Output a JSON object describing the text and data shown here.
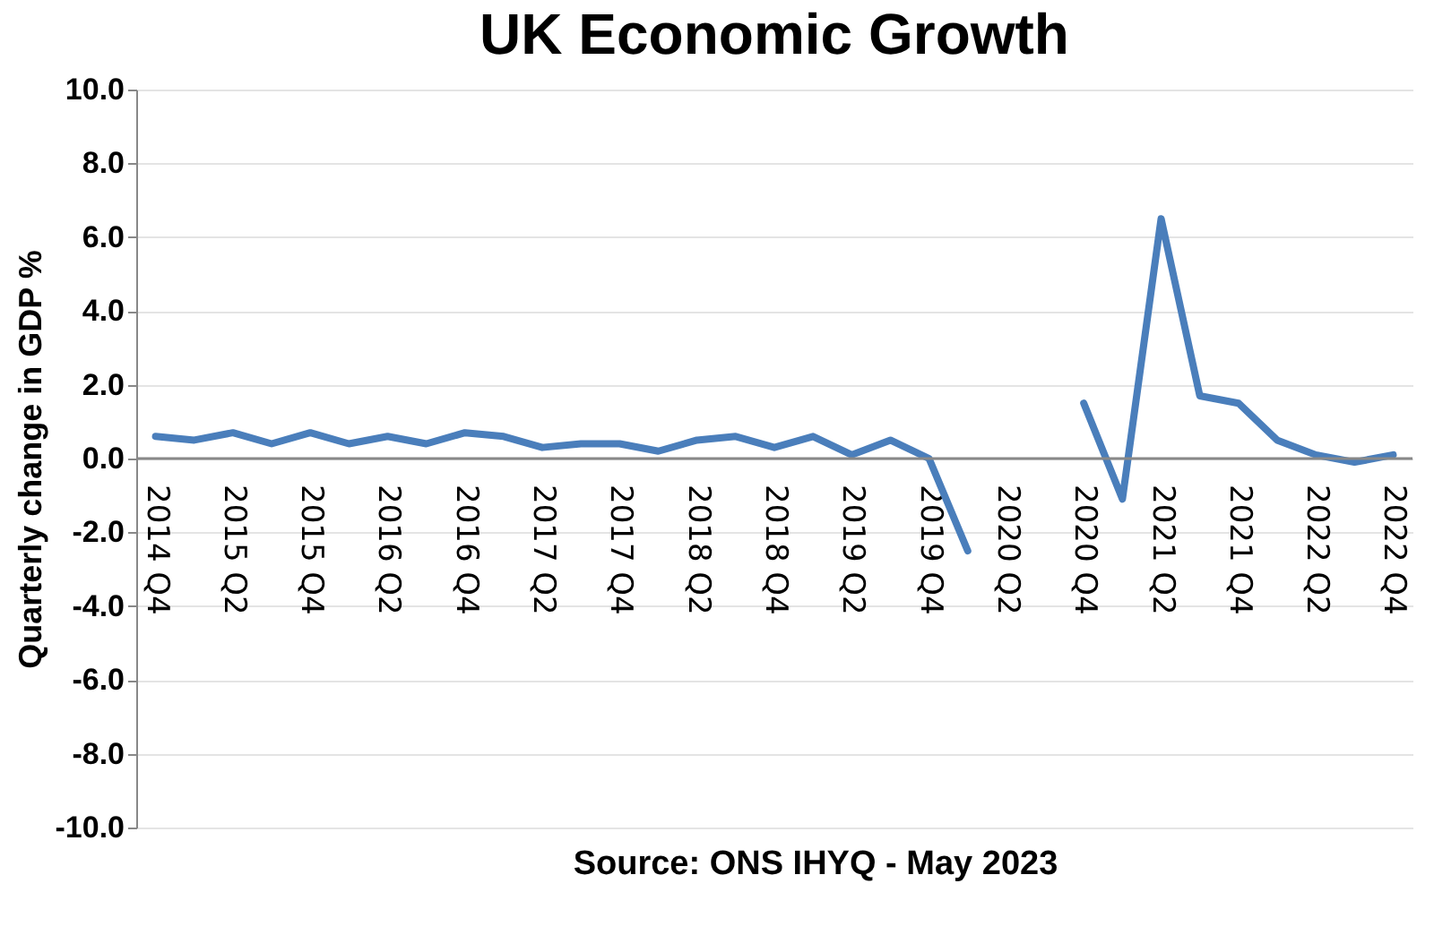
{
  "chart_data": {
    "type": "line",
    "title": "UK Economic Growth",
    "ylabel": "Quarterly change in GDP %",
    "annotations": [
      "Source: ONS IHYQ - May 2023"
    ],
    "categories": [
      "2014 Q4",
      null,
      "2015 Q2",
      null,
      "2015 Q4",
      null,
      "2016 Q2",
      null,
      "2016 Q4",
      null,
      "2017 Q2",
      null,
      "2017 Q4",
      null,
      "2018 Q2",
      null,
      "2018 Q4",
      null,
      "2019 Q2",
      null,
      "2019 Q4",
      null,
      "2020 Q2",
      null,
      "2020 Q4",
      null,
      "2021 Q2",
      null,
      "2021 Q4",
      null,
      "2022 Q2",
      null,
      "2022 Q4"
    ],
    "series": [
      {
        "color": "#4a7ebb",
        "values": [
          0.6,
          0.5,
          0.7,
          0.4,
          0.7,
          0.4,
          0.6,
          0.4,
          0.7,
          0.6,
          0.3,
          0.4,
          0.4,
          0.2,
          0.5,
          0.6,
          0.3,
          0.6,
          0.1,
          0.5,
          0.0,
          -2.5,
          null,
          null,
          1.5,
          -1.1,
          6.5,
          1.7,
          1.5,
          0.5,
          0.1,
          -0.1,
          0.1
        ]
      }
    ],
    "ylim": [
      -10,
      10
    ],
    "yticks": [
      {
        "value": -10,
        "label": "-10.0"
      },
      {
        "value": -8,
        "label": "-8.0"
      },
      {
        "value": -6,
        "label": "-6.0"
      },
      {
        "value": -4,
        "label": "-4.0"
      },
      {
        "value": -2,
        "label": "-2.0"
      },
      {
        "value": 0,
        "label": "0.0"
      },
      {
        "value": 2,
        "label": "2.0"
      },
      {
        "value": 4,
        "label": "4.0"
      },
      {
        "value": 6,
        "label": "6.0"
      },
      {
        "value": 8,
        "label": "8.0"
      },
      {
        "value": 10,
        "label": "10.0"
      }
    ],
    "grid": "y",
    "legend": false,
    "marker": "none",
    "line_style": "solid"
  }
}
